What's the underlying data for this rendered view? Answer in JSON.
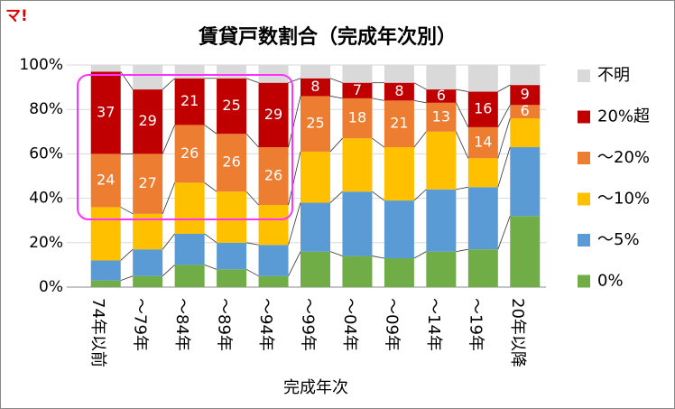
{
  "logo": "マ!",
  "chart_data": {
    "type": "stacked_bar",
    "title": "賃貸戸数割合（完成年次別）",
    "x_label": "完成年次",
    "categories": [
      "74年以前",
      "～79年",
      "～84年",
      "～89年",
      "～94年",
      "～99年",
      "～04年",
      "～09年",
      "～14年",
      "～19年",
      "20年以降"
    ],
    "series": [
      {
        "name": "0%",
        "color": "#70ad47",
        "values": [
          3,
          5,
          10,
          8,
          5,
          16,
          14,
          13,
          16,
          17,
          32
        ]
      },
      {
        "name": "～5%",
        "color": "#5b9bd5",
        "values": [
          9,
          12,
          14,
          12,
          14,
          22,
          29,
          26,
          28,
          28,
          31
        ]
      },
      {
        "name": "～10%",
        "color": "#ffc000",
        "values": [
          24,
          16,
          23,
          23,
          18,
          23,
          24,
          24,
          26,
          13,
          13
        ]
      },
      {
        "name": "～20%",
        "color": "#ed7d31",
        "values": [
          24,
          27,
          26,
          26,
          26,
          25,
          18,
          21,
          13,
          14,
          6
        ],
        "data_labels": true
      },
      {
        "name": "20%超",
        "color": "#c00000",
        "values": [
          37,
          29,
          21,
          25,
          29,
          8,
          7,
          8,
          6,
          16,
          9
        ],
        "data_labels": true
      },
      {
        "name": "不明",
        "color": "#d9d9d9",
        "values": [
          3,
          11,
          6,
          6,
          8,
          6,
          8,
          8,
          11,
          12,
          9
        ]
      }
    ],
    "ylim": [
      0,
      100
    ],
    "yticks": [
      {
        "value": 0,
        "label": "0%"
      },
      {
        "value": 20,
        "label": "20%"
      },
      {
        "value": 40,
        "label": "40%"
      },
      {
        "value": 60,
        "label": "60%"
      },
      {
        "value": 80,
        "label": "80%"
      },
      {
        "value": 100,
        "label": "100%"
      }
    ],
    "grid": true,
    "series_lines": true,
    "legend": "right"
  }
}
